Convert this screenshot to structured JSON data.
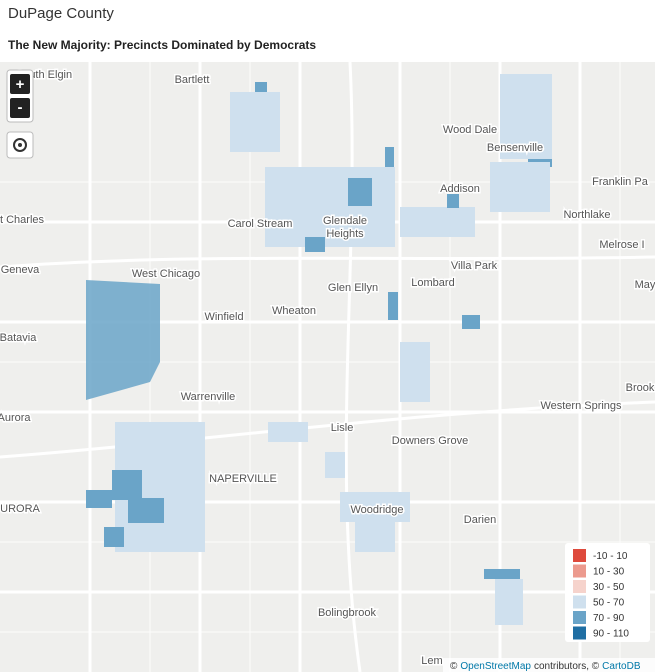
{
  "header": {
    "title": "DuPage County",
    "subtitle": "The New Majority: Precincts Dominated by Democrats"
  },
  "controls": {
    "zoom_in": "+",
    "zoom_out": "-"
  },
  "places": [
    "South Elgin",
    "Bartlett",
    "Wood Dale",
    "Bensenville",
    "Franklin Pa",
    "Addison",
    "Carol Stream",
    "Glendale",
    "Heights",
    "t Charles",
    "Northlake",
    "Melrose I",
    "Geneva",
    "West Chicago",
    "Villa Park",
    "Lombard",
    "Glen Ellyn",
    "May",
    "Wheaton",
    "Winfield",
    "Batavia",
    "Brook",
    "Warrenville",
    "Western Springs",
    "Aurora",
    "Lisle",
    "Downers Grove",
    "NAPERVILLE",
    "URORA",
    "Woodridge",
    "Darien",
    "Bolingbrook",
    "Lem"
  ],
  "legend": [
    {
      "label": "-10 - 10",
      "color": "#de4a3c"
    },
    {
      "label": "10 - 30",
      "color": "#ec9a8e"
    },
    {
      "label": "30 - 50",
      "color": "#f6d3cc"
    },
    {
      "label": "50 - 70",
      "color": "#cfe0ee"
    },
    {
      "label": "70 - 90",
      "color": "#6aa4c8"
    },
    {
      "label": "90 - 110",
      "color": "#1f6ea3"
    }
  ],
  "attribution": [
    "©",
    "OpenStreetMap",
    "contributors, ©",
    "CartoDB"
  ]
}
